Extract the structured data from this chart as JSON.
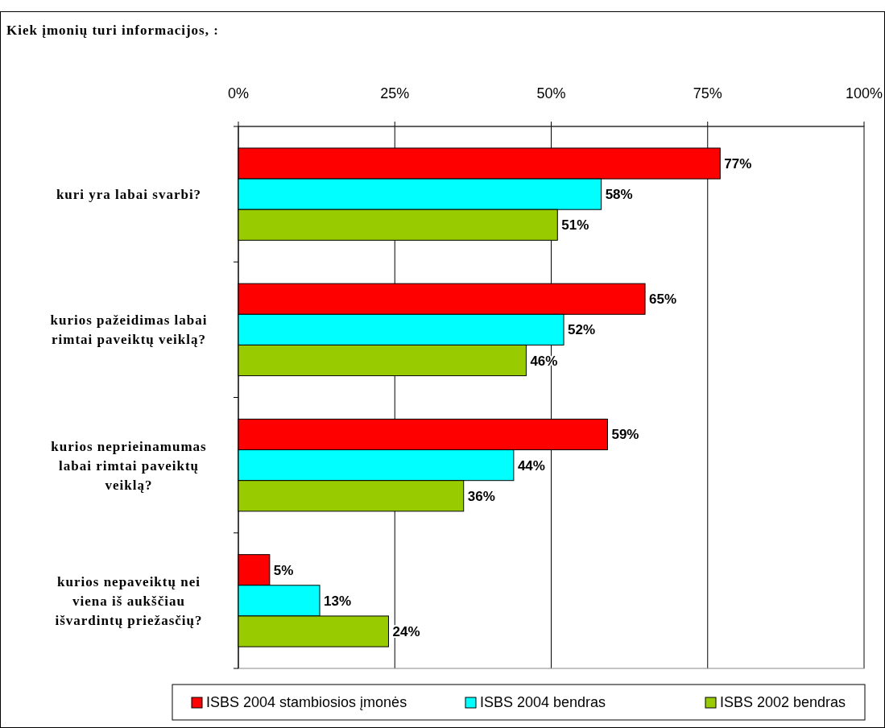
{
  "chart_data": {
    "type": "bar",
    "orientation": "horizontal",
    "title": "Kiek įmonių turi informacijos, :",
    "categories": [
      "kuri yra labai svarbi?",
      "kurios pažeidimas labai rimtai paveiktų veiklą?",
      "kurios neprieinamumas labai rimtai paveiktų veiklą?",
      "kurios nepaveiktų nei viena iš aukščiau išvardintų priežasčių?"
    ],
    "series": [
      {
        "name": "ISBS 2004 stambiosios įmonės",
        "color": "#ff0000",
        "values": [
          77,
          65,
          59,
          5
        ],
        "value_labels": [
          "77%",
          "65%",
          "59%",
          "5%"
        ]
      },
      {
        "name": "ISBS 2004 bendras",
        "color": "#00ffff",
        "values": [
          58,
          52,
          44,
          13
        ],
        "value_labels": [
          "58%",
          "52%",
          "44%",
          "13%"
        ]
      },
      {
        "name": "ISBS 2002 bendras",
        "color": "#99cc00",
        "values": [
          51,
          46,
          36,
          24
        ],
        "value_labels": [
          "51%",
          "46%",
          "36%",
          "24%"
        ]
      }
    ],
    "xlim": [
      0,
      100
    ],
    "xticks": [
      {
        "value": 0,
        "label": "0%"
      },
      {
        "value": 25,
        "label": "25%"
      },
      {
        "value": 50,
        "label": "50%"
      },
      {
        "value": 75,
        "label": "75%"
      },
      {
        "value": 100,
        "label": "100%"
      }
    ],
    "grid": "x",
    "legend": "bottom"
  }
}
